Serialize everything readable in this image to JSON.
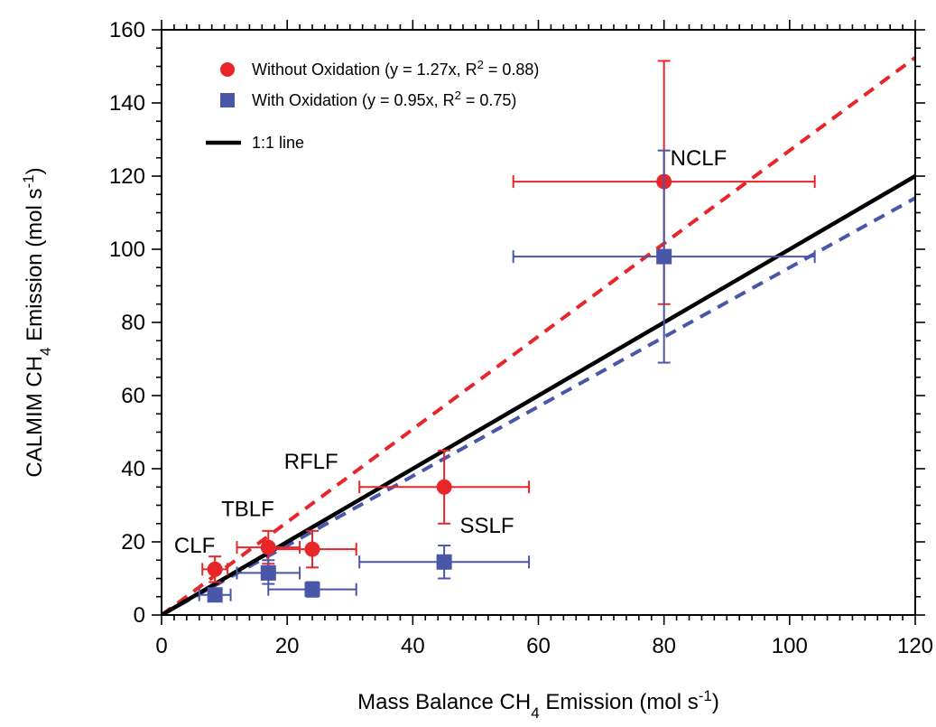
{
  "chart_data": {
    "type": "scatter",
    "xlabel": {
      "base": "Mass Balance CH",
      "sub": "4",
      "mid": " Emission (mol s",
      "sup": "-1",
      "tail": ")"
    },
    "ylabel": {
      "base": "CALMIM CH",
      "sub": "4",
      "mid": " Emission (mol s",
      "sup": "-1",
      "tail": ")"
    },
    "xlim": [
      0,
      120
    ],
    "ylim": [
      0,
      160
    ],
    "x_ticks": [
      0,
      20,
      40,
      60,
      80,
      100,
      120
    ],
    "y_ticks": [
      0,
      20,
      40,
      60,
      80,
      100,
      120,
      140,
      160
    ],
    "grid": false,
    "legend_position": "top-left",
    "series": [
      {
        "name": "Without Oxidation (y = 1.27x, R^2 = 0.88)",
        "legend": {
          "pre": "Without Oxidation (y = 1.27x, R",
          "sup": "2",
          "post": " = 0.88)"
        },
        "color": "#e8262a",
        "marker": "circle",
        "points": [
          {
            "x": 8.5,
            "y": 12.5,
            "x_err": [
              6.5,
              10.5
            ],
            "y_err": [
              9.0,
              16.0
            ]
          },
          {
            "x": 17.0,
            "y": 18.5,
            "x_err": [
              12.0,
              22.0
            ],
            "y_err": [
              14.0,
              23.0
            ]
          },
          {
            "x": 24.0,
            "y": 18.0,
            "x_err": [
              17.0,
              31.0
            ],
            "y_err": [
              13.0,
              23.0
            ]
          },
          {
            "x": 45.0,
            "y": 35.0,
            "x_err": [
              31.5,
              58.5
            ],
            "y_err": [
              25.0,
              45.0
            ]
          },
          {
            "x": 80.0,
            "y": 118.5,
            "x_err": [
              56.0,
              104.0
            ],
            "y_err": [
              85.0,
              151.5
            ]
          }
        ]
      },
      {
        "name": "With Oxidation (y = 0.95x, R^2 = 0.75)",
        "legend": {
          "pre": "With Oxidation (y = 0.95x, R",
          "sup": "2",
          "post": " = 0.75)"
        },
        "color": "#4a56a8",
        "marker": "square",
        "points": [
          {
            "x": 8.5,
            "y": 5.5,
            "x_err": [
              6.0,
              11.0
            ],
            "y_err": [
              4.0,
              7.0
            ]
          },
          {
            "x": 17.0,
            "y": 11.5,
            "x_err": [
              12.0,
              22.0
            ],
            "y_err": [
              8.5,
              15.0
            ]
          },
          {
            "x": 24.0,
            "y": 7.0,
            "x_err": [
              17.0,
              31.0
            ],
            "y_err": [
              5.0,
              9.0
            ]
          },
          {
            "x": 45.0,
            "y": 14.5,
            "x_err": [
              31.5,
              58.5
            ],
            "y_err": [
              10.0,
              19.0
            ]
          },
          {
            "x": 80.0,
            "y": 98.0,
            "x_err": [
              56.0,
              104.0
            ],
            "y_err": [
              69.0,
              127.0
            ]
          }
        ]
      }
    ],
    "fit_lines": [
      {
        "name": "Without Oxidation fit",
        "slope": 1.27,
        "color": "#e8262a",
        "dashed": true
      },
      {
        "name": "With Oxidation fit",
        "slope": 0.95,
        "color": "#4a56a8",
        "dashed": true
      }
    ],
    "reference_line": {
      "name": "1:1 line",
      "slope": 1.0,
      "color": "#000000"
    },
    "annotations": [
      {
        "text": "NCLF",
        "x": 81,
        "y": 125
      },
      {
        "text": "RFLF",
        "x": 19.5,
        "y": 42
      },
      {
        "text": "TBLF",
        "x": 9.5,
        "y": 29
      },
      {
        "text": "CLF",
        "x": 2,
        "y": 19
      },
      {
        "text": "SSLF",
        "x": 47.5,
        "y": 24.5
      }
    ]
  }
}
